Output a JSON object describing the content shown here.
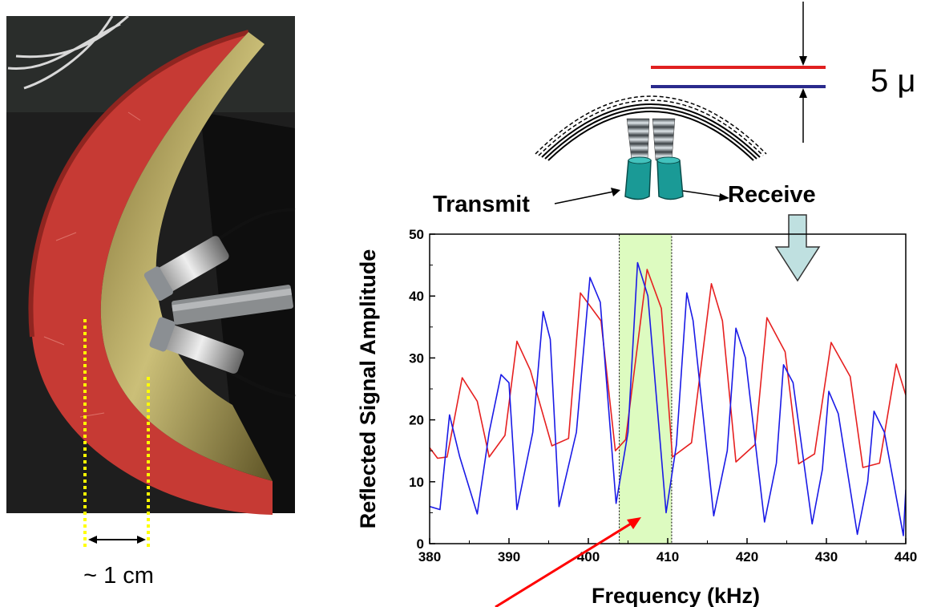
{
  "photo": {
    "scale_label": "~ 1 cm",
    "colors": {
      "shell": "#c63a34",
      "shell_shadow": "#8f2520",
      "inner_surface": "#b9ab5a",
      "background": "#1e1e1e",
      "marker": "#ffff00"
    }
  },
  "diagram": {
    "thickness_label": "5 μ",
    "transmit_label": "Transmit",
    "receive_label": "Receive",
    "colors": {
      "red_line": "#e02020",
      "blue_line": "#2a2a8c",
      "transducer": "#1a9a96",
      "down_arrow": "#bfe0e0"
    }
  },
  "chart_data": {
    "type": "line",
    "title": "",
    "xlabel": "Frequency (kHz)",
    "ylabel": "Reflected Signal Amplitude",
    "xlim": [
      380,
      440
    ],
    "ylim": [
      0,
      50
    ],
    "xticks": [
      380,
      390,
      400,
      410,
      420,
      430,
      440
    ],
    "yticks": [
      0,
      10,
      20,
      30,
      40,
      50
    ],
    "grid": false,
    "highlight_region": {
      "x": [
        403.9,
        410.5
      ],
      "color": "#ddfbc0"
    },
    "series": [
      {
        "color": "#e62020",
        "x": [
          380,
          381.0,
          382.2,
          384.1,
          386.0,
          387.5,
          389.5,
          391.0,
          392.7,
          395.4,
          397.5,
          399.0,
          401.6,
          403.4,
          404.7,
          407.4,
          409.2,
          410.6,
          413.0,
          415.5,
          416.9,
          418.6,
          421.0,
          422.5,
          424.8,
          426.5,
          428.5,
          430.6,
          433.0,
          434.6,
          436.7,
          438.8,
          440
        ],
        "values": [
          15.5,
          13.8,
          14.0,
          26.8,
          23.0,
          14.0,
          17.5,
          32.7,
          28.0,
          15.8,
          17.0,
          40.5,
          36.0,
          15.0,
          16.8,
          44.3,
          38.0,
          14.0,
          16.3,
          42.0,
          36.0,
          13.2,
          16.0,
          36.5,
          31.0,
          12.9,
          14.5,
          32.5,
          27.0,
          12.3,
          13.0,
          29.0,
          24.0
        ]
      },
      {
        "color": "#1a1ae6",
        "x": [
          380,
          381.3,
          382.5,
          383.8,
          386.0,
          387.5,
          389.0,
          390.0,
          391.0,
          393.0,
          394.3,
          395.2,
          396.3,
          398.5,
          400.2,
          401.5,
          403.5,
          405.0,
          406.2,
          407.5,
          409.8,
          411.1,
          412.4,
          413.2,
          415.8,
          417.5,
          418.6,
          419.8,
          422.2,
          423.7,
          424.6,
          425.8,
          428.2,
          429.5,
          430.3,
          431.5,
          433.9,
          435.2,
          436.0,
          437.3,
          439.7,
          440
        ],
        "values": [
          6.0,
          5.5,
          20.8,
          14.0,
          4.8,
          18.0,
          27.3,
          26.0,
          5.5,
          18.0,
          37.5,
          33.0,
          6.0,
          18.0,
          43.0,
          39.0,
          6.5,
          18.0,
          45.4,
          40.0,
          5.0,
          16.0,
          40.5,
          36.0,
          4.5,
          15.0,
          34.8,
          30.0,
          3.5,
          13.0,
          28.9,
          26.0,
          3.2,
          12.0,
          24.6,
          21.0,
          1.5,
          10.0,
          21.4,
          18.0,
          1.3,
          8.7
        ]
      }
    ]
  }
}
